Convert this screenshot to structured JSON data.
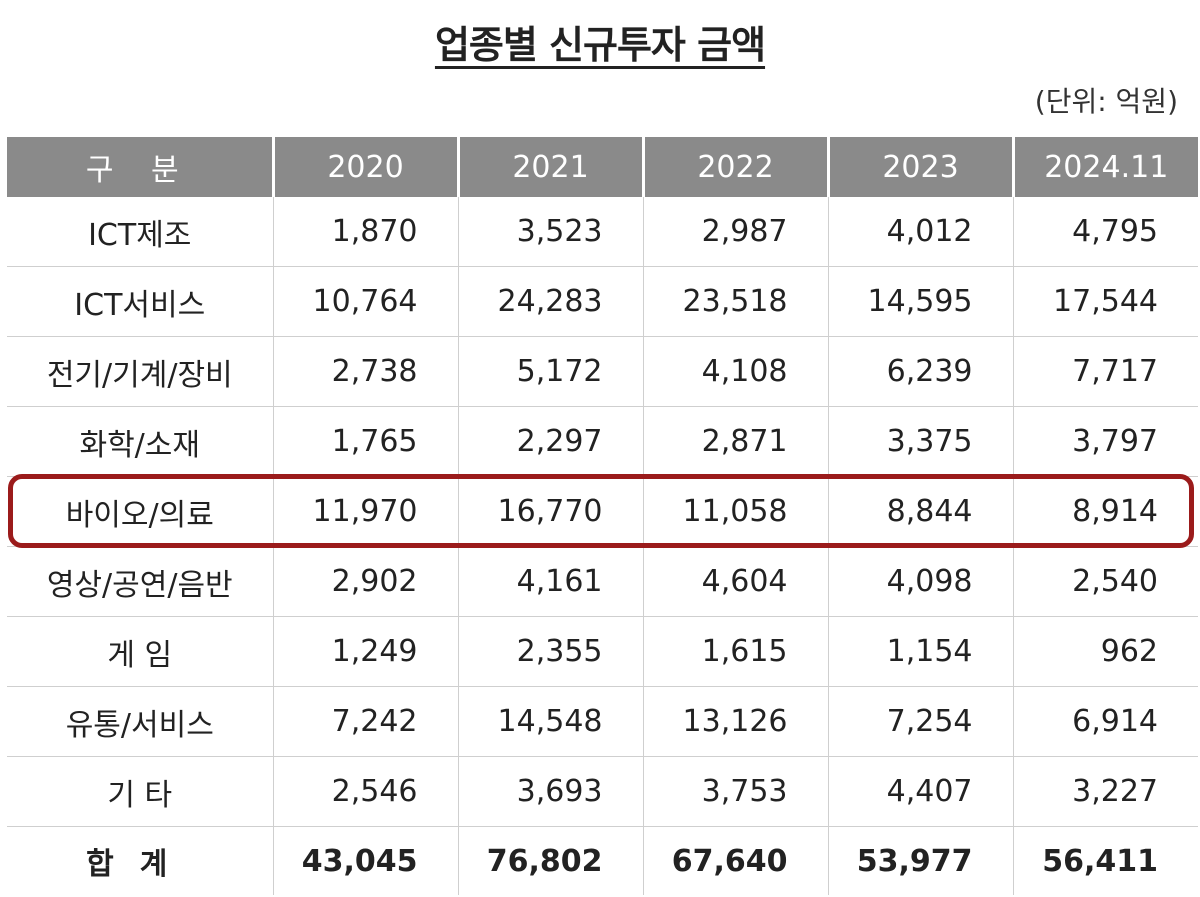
{
  "title": "업종별 신규투자 금액",
  "unit": "(단위: 억원)",
  "headers": [
    "구 분",
    "2020",
    "2021",
    "2022",
    "2023",
    "2024.11"
  ],
  "rows": [
    {
      "label": "ICT제조",
      "values": [
        "1,870",
        "3,523",
        "2,987",
        "4,012",
        "4,795"
      ]
    },
    {
      "label": "ICT서비스",
      "values": [
        "10,764",
        "24,283",
        "23,518",
        "14,595",
        "17,544"
      ]
    },
    {
      "label": "전기/기계/장비",
      "values": [
        "2,738",
        "5,172",
        "4,108",
        "6,239",
        "7,717"
      ]
    },
    {
      "label": "화학/소재",
      "values": [
        "1,765",
        "2,297",
        "2,871",
        "3,375",
        "3,797"
      ]
    },
    {
      "label": "바이오/의료",
      "values": [
        "11,970",
        "16,770",
        "11,058",
        "8,844",
        "8,914"
      ]
    },
    {
      "label": "영상/공연/음반",
      "values": [
        "2,902",
        "4,161",
        "4,604",
        "4,098",
        "2,540"
      ]
    },
    {
      "label": "게 임",
      "values": [
        "1,249",
        "2,355",
        "1,615",
        "1,154",
        "962"
      ]
    },
    {
      "label": "유통/서비스",
      "values": [
        "7,242",
        "14,548",
        "13,126",
        "7,254",
        "6,914"
      ]
    },
    {
      "label": "기 타",
      "values": [
        "2,546",
        "3,693",
        "3,753",
        "4,407",
        "3,227"
      ]
    }
  ],
  "total": {
    "label": "합계",
    "values": [
      "43,045",
      "76,802",
      "67,640",
      "53,977",
      "56,411"
    ]
  },
  "highlight_color": "#9b1b1b",
  "header_bg": "#8a8a8a"
}
